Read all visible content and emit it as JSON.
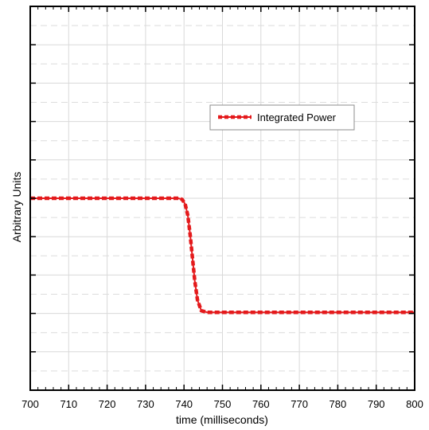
{
  "chart_data": {
    "type": "line",
    "title": "",
    "xlabel": "time (milliseconds)",
    "ylabel": "Arbitrary Units",
    "xlim": [
      700,
      800
    ],
    "ylim": [
      0,
      10
    ],
    "x_ticks": [
      700,
      710,
      720,
      730,
      740,
      750,
      760,
      770,
      780,
      790,
      800
    ],
    "y_tick_labels_shown": false,
    "y_major_tick_count": 10,
    "grid": "major solid, minor dashed",
    "legend": {
      "placement": "upper-right",
      "entries": [
        "Integrated Power"
      ]
    },
    "series": [
      {
        "name": "Integrated Power",
        "color": "#e41a1c",
        "style": "dashed-with-solid-core",
        "x": [
          700,
          720,
          738.5,
          739.5,
          740.3,
          741.0,
          741.6,
          742.2,
          742.8,
          743.5,
          744.5,
          746,
          760,
          780,
          800
        ],
        "y": [
          5.0,
          5.0,
          5.0,
          4.97,
          4.85,
          4.55,
          4.05,
          3.45,
          2.85,
          2.35,
          2.07,
          2.03,
          2.03,
          2.03,
          2.03
        ]
      }
    ]
  }
}
